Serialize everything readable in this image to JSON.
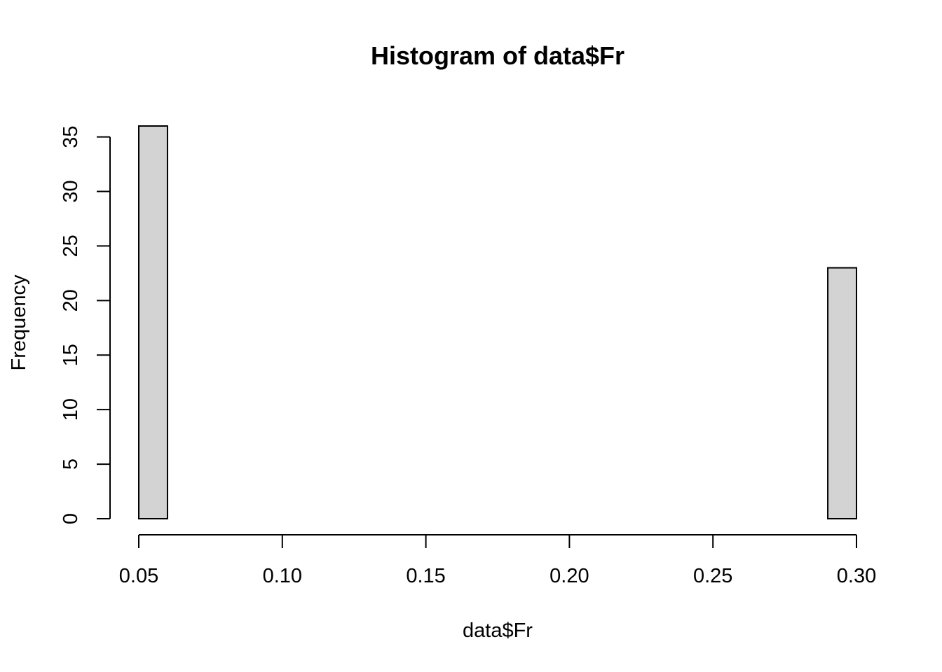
{
  "chart_data": {
    "type": "bar",
    "title": "Histogram of data$Fr",
    "xlabel": "data$Fr",
    "ylabel": "Frequency",
    "xlim": [
      0.05,
      0.3
    ],
    "ylim": [
      0,
      36
    ],
    "bin_width": 0.01,
    "bins": [
      {
        "start": 0.05,
        "end": 0.06,
        "count": 36
      },
      {
        "start": 0.06,
        "end": 0.07,
        "count": 0
      },
      {
        "start": 0.07,
        "end": 0.08,
        "count": 0
      },
      {
        "start": 0.08,
        "end": 0.09,
        "count": 0
      },
      {
        "start": 0.09,
        "end": 0.1,
        "count": 0
      },
      {
        "start": 0.1,
        "end": 0.11,
        "count": 0
      },
      {
        "start": 0.11,
        "end": 0.12,
        "count": 0
      },
      {
        "start": 0.12,
        "end": 0.13,
        "count": 0
      },
      {
        "start": 0.13,
        "end": 0.14,
        "count": 0
      },
      {
        "start": 0.14,
        "end": 0.15,
        "count": 0
      },
      {
        "start": 0.15,
        "end": 0.16,
        "count": 0
      },
      {
        "start": 0.16,
        "end": 0.17,
        "count": 0
      },
      {
        "start": 0.17,
        "end": 0.18,
        "count": 0
      },
      {
        "start": 0.18,
        "end": 0.19,
        "count": 0
      },
      {
        "start": 0.19,
        "end": 0.2,
        "count": 0
      },
      {
        "start": 0.2,
        "end": 0.21,
        "count": 0
      },
      {
        "start": 0.21,
        "end": 0.22,
        "count": 0
      },
      {
        "start": 0.22,
        "end": 0.23,
        "count": 0
      },
      {
        "start": 0.23,
        "end": 0.24,
        "count": 0
      },
      {
        "start": 0.24,
        "end": 0.25,
        "count": 0
      },
      {
        "start": 0.25,
        "end": 0.26,
        "count": 0
      },
      {
        "start": 0.26,
        "end": 0.27,
        "count": 0
      },
      {
        "start": 0.27,
        "end": 0.28,
        "count": 0
      },
      {
        "start": 0.28,
        "end": 0.29,
        "count": 0
      },
      {
        "start": 0.29,
        "end": 0.3,
        "count": 23
      }
    ],
    "x_ticks": [
      0.05,
      0.1,
      0.15,
      0.2,
      0.25,
      0.3
    ],
    "x_tick_labels": [
      "0.05",
      "0.10",
      "0.15",
      "0.20",
      "0.25",
      "0.30"
    ],
    "y_ticks": [
      0,
      5,
      10,
      15,
      20,
      25,
      30,
      35
    ],
    "y_tick_labels": [
      "0",
      "5",
      "10",
      "15",
      "20",
      "25",
      "30",
      "35"
    ],
    "grid": false,
    "bar_fill": "#d3d3d3",
    "bar_stroke": "#000000"
  }
}
